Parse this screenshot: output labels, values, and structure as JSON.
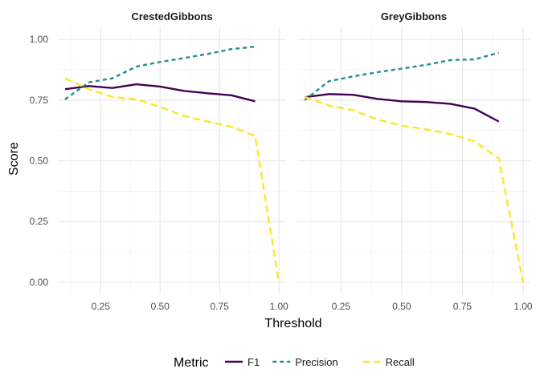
{
  "chart_data": {
    "type": "line",
    "xlabel": "Threshold",
    "ylabel": "Score",
    "xlim": [
      0.07,
      1.03
    ],
    "ylim": [
      -0.05,
      1.05
    ],
    "x_ticks": [
      0.25,
      0.5,
      0.75,
      1.0
    ],
    "x_tick_labels": [
      "0.25",
      "0.50",
      "0.75",
      "1.00"
    ],
    "y_ticks": [
      0.0,
      0.25,
      0.5,
      0.75,
      1.0
    ],
    "y_tick_labels": [
      "0.00",
      "0.25",
      "0.50",
      "0.75",
      "1.00"
    ],
    "grid": true,
    "legend": {
      "title": "Metric",
      "placement": "bottom",
      "entries": [
        {
          "name": "F1",
          "color": "#440154",
          "dash": "solid"
        },
        {
          "name": "Precision",
          "color": "#21908C",
          "dash": "dashed"
        },
        {
          "name": "Recall",
          "color": "#FDE725",
          "dash": "longdash"
        }
      ]
    },
    "panels": [
      {
        "title": "CrestedGibbons",
        "series": [
          {
            "name": "F1",
            "x": [
              0.1,
              0.2,
              0.3,
              0.4,
              0.5,
              0.6,
              0.7,
              0.8,
              0.9
            ],
            "y": [
              0.795,
              0.808,
              0.8,
              0.815,
              0.806,
              0.788,
              0.778,
              0.77,
              0.745
            ]
          },
          {
            "name": "Precision",
            "x": [
              0.1,
              0.2,
              0.3,
              0.4,
              0.5,
              0.6,
              0.7,
              0.8,
              0.9
            ],
            "y": [
              0.753,
              0.823,
              0.84,
              0.888,
              0.907,
              0.923,
              0.94,
              0.96,
              0.97
            ]
          },
          {
            "name": "Recall",
            "x": [
              0.1,
              0.2,
              0.3,
              0.4,
              0.5,
              0.6,
              0.7,
              0.8,
              0.9,
              1.0
            ],
            "y": [
              0.84,
              0.795,
              0.763,
              0.753,
              0.722,
              0.685,
              0.662,
              0.64,
              0.603,
              0.0
            ]
          }
        ]
      },
      {
        "title": "GreyGibbons",
        "series": [
          {
            "name": "F1",
            "x": [
              0.1,
              0.2,
              0.3,
              0.4,
              0.5,
              0.6,
              0.7,
              0.8,
              0.9
            ],
            "y": [
              0.762,
              0.775,
              0.772,
              0.755,
              0.745,
              0.742,
              0.735,
              0.715,
              0.662
            ]
          },
          {
            "name": "Precision",
            "x": [
              0.1,
              0.2,
              0.3,
              0.4,
              0.5,
              0.6,
              0.7,
              0.8,
              0.9
            ],
            "y": [
              0.75,
              0.828,
              0.848,
              0.865,
              0.88,
              0.895,
              0.915,
              0.918,
              0.945
            ]
          },
          {
            "name": "Recall",
            "x": [
              0.1,
              0.2,
              0.3,
              0.4,
              0.5,
              0.6,
              0.7,
              0.8,
              0.9,
              1.0
            ],
            "y": [
              0.763,
              0.728,
              0.708,
              0.67,
              0.645,
              0.63,
              0.61,
              0.58,
              0.51,
              0.0
            ]
          }
        ]
      }
    ]
  }
}
